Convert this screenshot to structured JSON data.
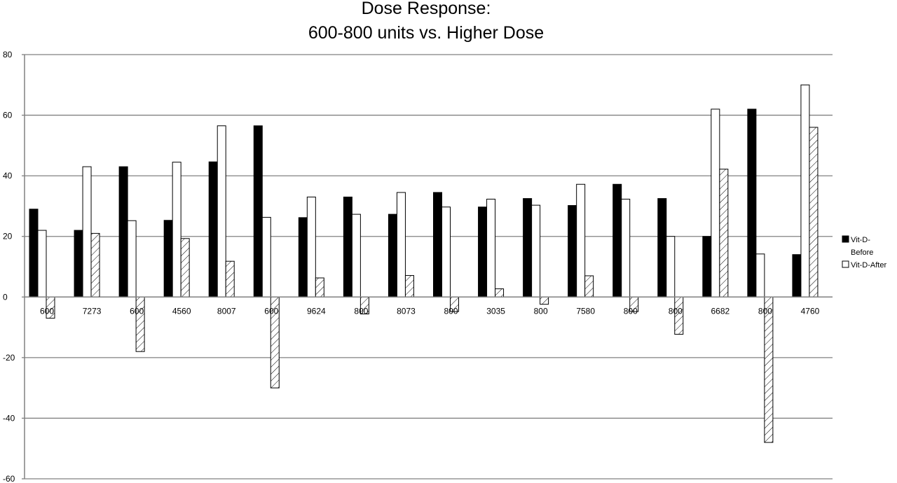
{
  "chart_data": {
    "type": "bar",
    "title_lines": [
      "Dose Response:",
      "600-800 units vs. Higher Dose"
    ],
    "categories": [
      "600",
      "7273",
      "600",
      "4560",
      "8007",
      "600",
      "9624",
      "800",
      "8073",
      "800",
      "3035",
      "800",
      "7580",
      "800",
      "800",
      "6682",
      "800",
      "4760"
    ],
    "series": [
      {
        "name": "Vit-D-Before",
        "style": "solid",
        "values": [
          29,
          22,
          43,
          25.3,
          44.6,
          56.5,
          26.2,
          33,
          27.3,
          34.5,
          29.7,
          32.5,
          30.2,
          37.2,
          32.5,
          20,
          62,
          14
        ]
      },
      {
        "name": "Vit-D-After",
        "style": "outline",
        "values": [
          22,
          43,
          25.2,
          44.5,
          56.5,
          26.3,
          33,
          27.3,
          34.5,
          29.7,
          32.3,
          30.3,
          37.2,
          32.3,
          20,
          62,
          14.2,
          70
        ]
      },
      {
        "name": "",
        "style": "hatched",
        "values": [
          -7,
          21,
          -18,
          19.3,
          11.8,
          -30,
          6.3,
          -5.6,
          7.1,
          -4.8,
          2.7,
          -2.4,
          7,
          -4.8,
          -12.3,
          42.2,
          -48,
          56
        ]
      }
    ],
    "legend": [
      "Vit-D-Before",
      "Vit-D-After"
    ],
    "legend_lines": [
      [
        "Vit-D-",
        "Before"
      ],
      [
        "Vit-D-After"
      ]
    ],
    "legend_position": "right",
    "ylim": [
      -60,
      80
    ],
    "yticks": [
      80,
      60,
      40,
      20,
      0,
      -20,
      -40,
      -60
    ],
    "grid": true,
    "colors": {
      "solid": "#000000",
      "outline": "#ffffff",
      "grid": "#808080",
      "axis": "#808080"
    }
  }
}
